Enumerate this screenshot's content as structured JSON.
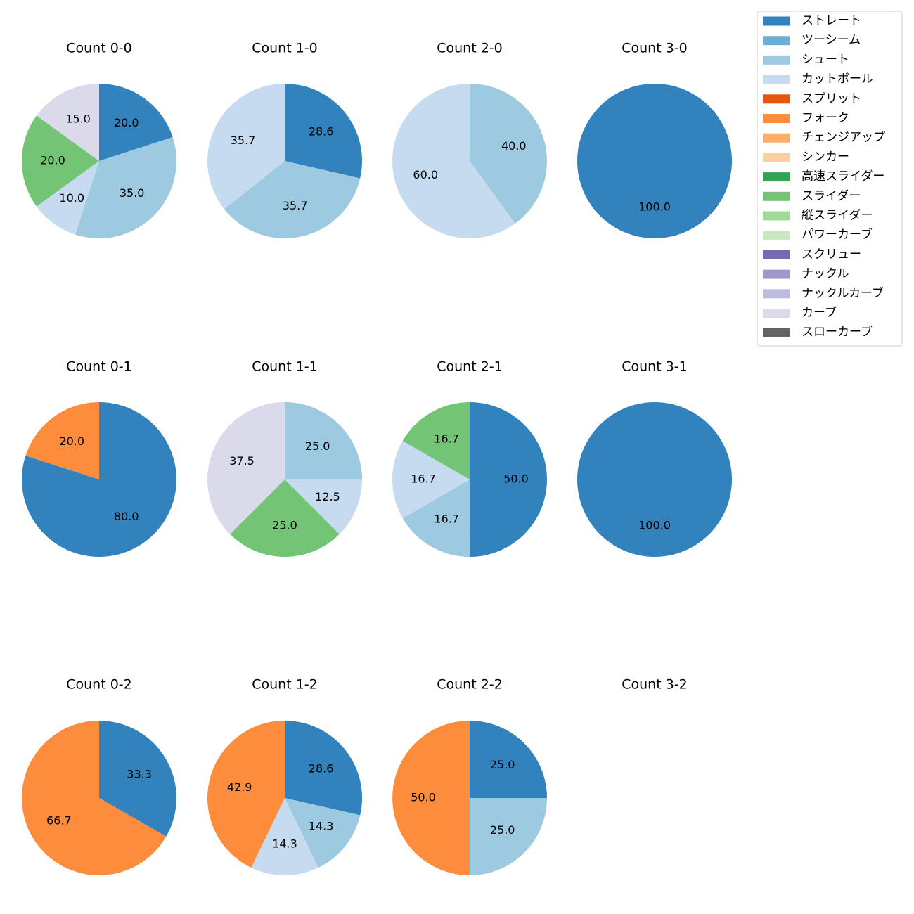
{
  "chart_data": {
    "type": "pie",
    "legend": {
      "placement": "top-right",
      "entries": [
        {
          "name": "ストレート",
          "color": "#3182bd"
        },
        {
          "name": "ツーシーム",
          "color": "#6baed6"
        },
        {
          "name": "シュート",
          "color": "#9ecae1"
        },
        {
          "name": "カットボール",
          "color": "#c6dbef"
        },
        {
          "name": "スプリット",
          "color": "#e6550d"
        },
        {
          "name": "フォーク",
          "color": "#fd8d3c"
        },
        {
          "name": "チェンジアップ",
          "color": "#fdae6b"
        },
        {
          "name": "シンカー",
          "color": "#fdd0a2"
        },
        {
          "name": "高速スライダー",
          "color": "#31a354"
        },
        {
          "name": "スライダー",
          "color": "#74c476"
        },
        {
          "name": "縦スライダー",
          "color": "#a1d99b"
        },
        {
          "name": "パワーカーブ",
          "color": "#c7e9c0"
        },
        {
          "name": "スクリュー",
          "color": "#756bb1"
        },
        {
          "name": "ナックル",
          "color": "#9e9ac8"
        },
        {
          "name": "ナックルカーブ",
          "color": "#bcbddc"
        },
        {
          "name": "カーブ",
          "color": "#dadaeb"
        },
        {
          "name": "スローカーブ",
          "color": "#636363"
        }
      ]
    },
    "pies": [
      {
        "title": "Count 0-0",
        "slices": [
          {
            "pitch": "ストレート",
            "value": 20.0,
            "label": "20.0"
          },
          {
            "pitch": "シュート",
            "value": 35.0,
            "label": "35.0"
          },
          {
            "pitch": "カットボール",
            "value": 10.0,
            "label": "10.0"
          },
          {
            "pitch": "スライダー",
            "value": 20.0,
            "label": "20.0"
          },
          {
            "pitch": "カーブ",
            "value": 15.0,
            "label": "15.0"
          }
        ]
      },
      {
        "title": "Count 1-0",
        "slices": [
          {
            "pitch": "ストレート",
            "value": 28.6,
            "label": "28.6"
          },
          {
            "pitch": "シュート",
            "value": 35.7,
            "label": "35.7"
          },
          {
            "pitch": "カットボール",
            "value": 35.7,
            "label": "35.7"
          }
        ]
      },
      {
        "title": "Count 2-0",
        "slices": [
          {
            "pitch": "シュート",
            "value": 40.0,
            "label": "40.0"
          },
          {
            "pitch": "カットボール",
            "value": 60.0,
            "label": "60.0"
          }
        ]
      },
      {
        "title": "Count 3-0",
        "slices": [
          {
            "pitch": "ストレート",
            "value": 100.0,
            "label": "100.0"
          }
        ]
      },
      {
        "title": "Count 0-1",
        "slices": [
          {
            "pitch": "ストレート",
            "value": 80.0,
            "label": "80.0"
          },
          {
            "pitch": "フォーク",
            "value": 20.0,
            "label": "20.0"
          }
        ]
      },
      {
        "title": "Count 1-1",
        "slices": [
          {
            "pitch": "シュート",
            "value": 25.0,
            "label": "25.0"
          },
          {
            "pitch": "カットボール",
            "value": 12.5,
            "label": "12.5"
          },
          {
            "pitch": "スライダー",
            "value": 25.0,
            "label": "25.0"
          },
          {
            "pitch": "カーブ",
            "value": 37.5,
            "label": "37.5"
          }
        ]
      },
      {
        "title": "Count 2-1",
        "slices": [
          {
            "pitch": "ストレート",
            "value": 50.0,
            "label": "50.0"
          },
          {
            "pitch": "シュート",
            "value": 16.7,
            "label": "16.7"
          },
          {
            "pitch": "カットボール",
            "value": 16.7,
            "label": "16.7"
          },
          {
            "pitch": "スライダー",
            "value": 16.7,
            "label": "16.7"
          }
        ]
      },
      {
        "title": "Count 3-1",
        "slices": [
          {
            "pitch": "ストレート",
            "value": 100.0,
            "label": "100.0"
          }
        ]
      },
      {
        "title": "Count 0-2",
        "slices": [
          {
            "pitch": "ストレート",
            "value": 33.3,
            "label": "33.3"
          },
          {
            "pitch": "フォーク",
            "value": 66.7,
            "label": "66.7"
          }
        ]
      },
      {
        "title": "Count 1-2",
        "slices": [
          {
            "pitch": "ストレート",
            "value": 28.6,
            "label": "28.6"
          },
          {
            "pitch": "シュート",
            "value": 14.3,
            "label": "14.3"
          },
          {
            "pitch": "カットボール",
            "value": 14.3,
            "label": "14.3"
          },
          {
            "pitch": "フォーク",
            "value": 42.9,
            "label": "42.9"
          }
        ]
      },
      {
        "title": "Count 2-2",
        "slices": [
          {
            "pitch": "ストレート",
            "value": 25.0,
            "label": "25.0"
          },
          {
            "pitch": "シュート",
            "value": 25.0,
            "label": "25.0"
          },
          {
            "pitch": "フォーク",
            "value": 50.0,
            "label": "50.0"
          }
        ]
      },
      {
        "title": "Count 3-2",
        "slices": []
      }
    ]
  }
}
